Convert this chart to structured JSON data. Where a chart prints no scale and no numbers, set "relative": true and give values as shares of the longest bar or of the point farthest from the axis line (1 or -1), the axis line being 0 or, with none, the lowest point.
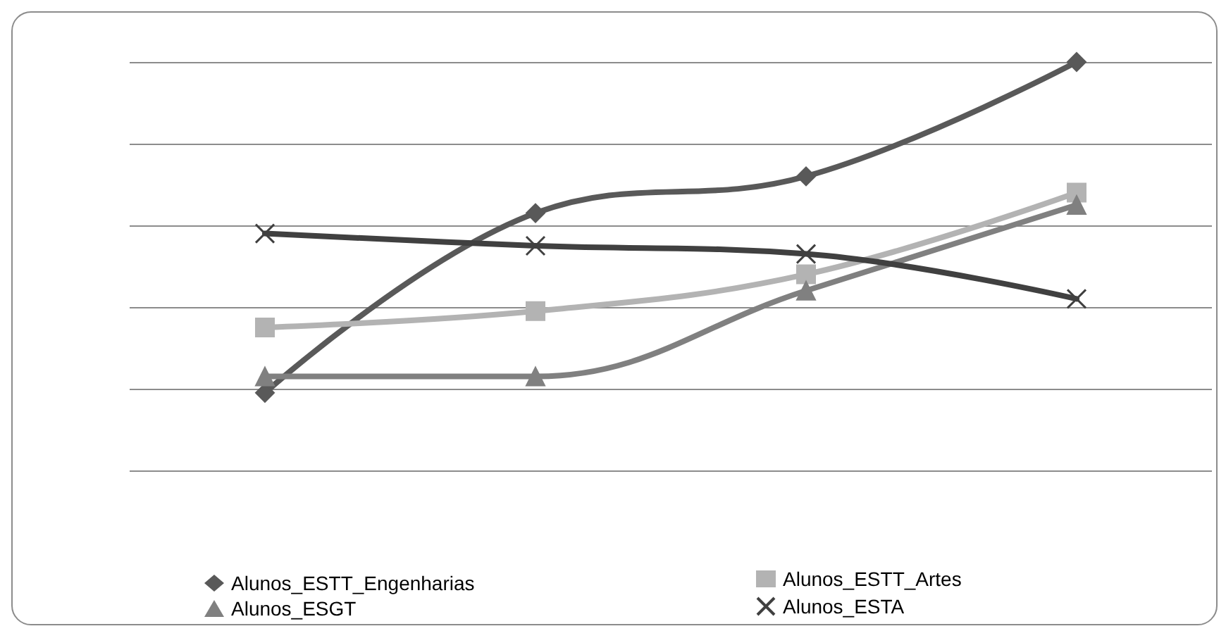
{
  "chart_data": {
    "type": "line",
    "relative": true,
    "grid": "y",
    "legend": "bottom",
    "line_style": "solid",
    "categories": [
      null,
      null,
      null,
      null
    ],
    "series": [
      {
        "name": "Alunos_ESTT_Engenharias",
        "color": "#595959",
        "marker": "diamond",
        "values": [
          0.19,
          0.63,
          0.72,
          1
        ]
      },
      {
        "name": "Alunos_ESTT_Artes",
        "color": "#b3b3b3",
        "marker": "square",
        "values": [
          0.35,
          0.39,
          0.48,
          0.68
        ]
      },
      {
        "name": "Alunos_ESGT",
        "color": "#808080",
        "marker": "triangle",
        "values": [
          0.23,
          0.23,
          0.44,
          0.65
        ]
      },
      {
        "name": "Alunos_ESTA",
        "color": "#404040",
        "marker": "cross",
        "values": [
          0.58,
          0.55,
          0.53,
          0.42
        ]
      }
    ]
  }
}
